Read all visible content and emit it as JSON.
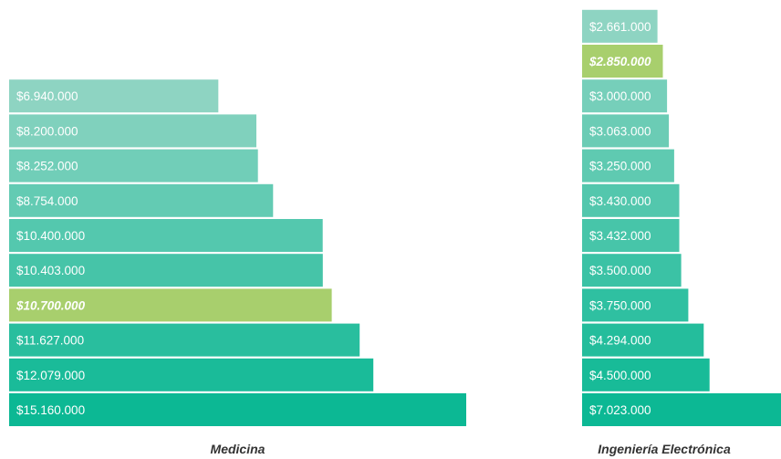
{
  "chart_data": [
    {
      "type": "bar",
      "orientation": "horizontal",
      "title": "Medicina",
      "values": [
        6940000,
        8200000,
        8252000,
        8754000,
        10400000,
        10403000,
        10700000,
        11627000,
        12079000,
        15160000
      ],
      "labels": [
        "$6.940.000",
        "$8.200.000",
        "$8.252.000",
        "$8.754.000",
        "$10.400.000",
        "$10.403.000",
        "$10.700.000",
        "$11.627.000",
        "$12.079.000",
        "$15.160.000"
      ],
      "highlight_index": 6,
      "max_value": 15160000
    },
    {
      "type": "bar",
      "orientation": "horizontal",
      "title": "Ingeniería Electrónica",
      "values": [
        2661000,
        2850000,
        3000000,
        3063000,
        3250000,
        3430000,
        3432000,
        3500000,
        3750000,
        4294000,
        4500000,
        7023000
      ],
      "labels": [
        "$2.661.000",
        "$2.850.000",
        "$3.000.000",
        "$3.063.000",
        "$3.250.000",
        "$3.430.000",
        "$3.432.000",
        "$3.500.000",
        "$3.750.000",
        "$4.294.000",
        "$4.500.000",
        "$7.023.000"
      ],
      "highlight_index": 1,
      "max_value": 7023000
    }
  ],
  "colors": {
    "gradient_light": "#8ed4c2",
    "gradient_dark": "#0cb894",
    "highlight": "#a8cf6d",
    "label_text": "#ffffff",
    "title_text": "#333333"
  }
}
